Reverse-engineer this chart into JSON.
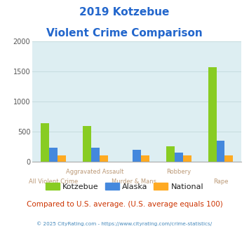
{
  "title_line1": "2019 Kotzebue",
  "title_line2": "Violent Crime Comparison",
  "categories": [
    "All Violent Crime",
    "Aggravated Assault",
    "Murder & Mans...",
    "Robbery",
    "Rape"
  ],
  "series": {
    "Kotzebue": [
      640,
      600,
      0,
      260,
      1570
    ],
    "Alaska": [
      230,
      235,
      195,
      150,
      345
    ],
    "National": [
      100,
      100,
      100,
      100,
      100
    ]
  },
  "colors": {
    "Kotzebue": "#88cc22",
    "Alaska": "#4488dd",
    "National": "#ffaa22"
  },
  "ylim": [
    0,
    2000
  ],
  "yticks": [
    0,
    500,
    1000,
    1500,
    2000
  ],
  "plot_bg": "#ddeef2",
  "title_color": "#2266cc",
  "xlabel_color": "#bb9977",
  "legend_text_color": "#222222",
  "footer_text": "Compared to U.S. average. (U.S. average equals 100)",
  "footer_color": "#cc3300",
  "copyright_text": "© 2025 CityRating.com - https://www.cityrating.com/crime-statistics/",
  "copyright_color": "#4488bb",
  "bar_width": 0.2,
  "grid_color": "#c8dde0"
}
